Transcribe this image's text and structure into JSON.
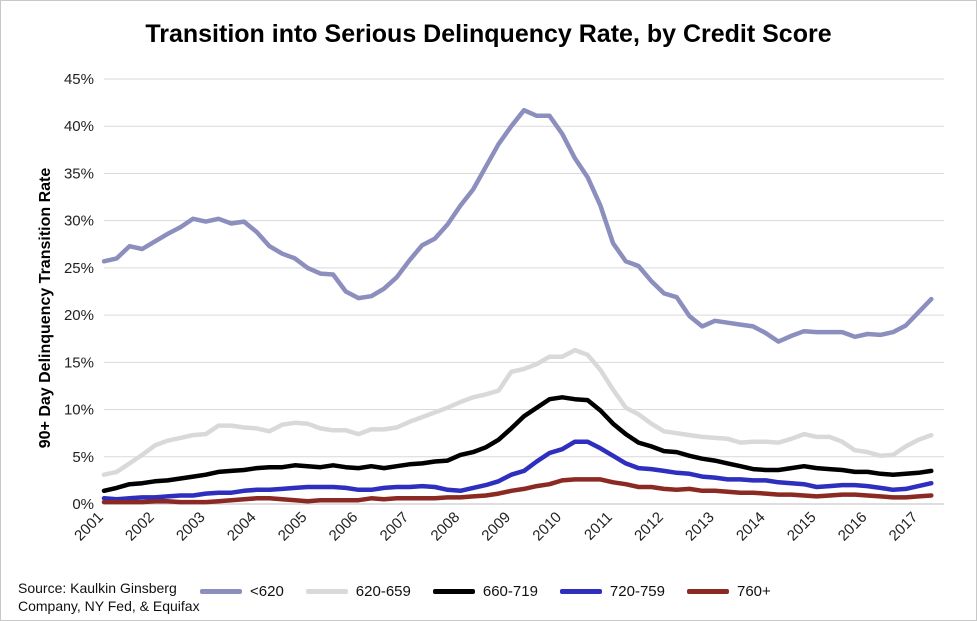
{
  "chart_data": {
    "type": "line",
    "title": "Transition into Serious Delinquency Rate, by Credit Score",
    "ylabel": "90+ Day Delinquency Transition Rate",
    "xlabel": "",
    "ylim": [
      0,
      45
    ],
    "yticks": [
      "0%",
      "5%",
      "10%",
      "15%",
      "20%",
      "25%",
      "30%",
      "35%",
      "40%",
      "45%"
    ],
    "xticks": [
      "2001",
      "2002",
      "2003",
      "2004",
      "2005",
      "2006",
      "2007",
      "2008",
      "2009",
      "2010",
      "2011",
      "2012",
      "2013",
      "2014",
      "2015",
      "2016",
      "2017"
    ],
    "xlim": [
      2001,
      2017.5
    ],
    "grid": true,
    "legend_position": "bottom",
    "series": [
      {
        "name": "<620",
        "color": "#8c8fbe",
        "x": [
          2001.0,
          2001.25,
          2001.5,
          2001.75,
          2002.0,
          2002.25,
          2002.5,
          2002.75,
          2003.0,
          2003.25,
          2003.5,
          2003.75,
          2004.0,
          2004.25,
          2004.5,
          2004.75,
          2005.0,
          2005.25,
          2005.5,
          2005.75,
          2006.0,
          2006.25,
          2006.5,
          2006.75,
          2007.0,
          2007.25,
          2007.5,
          2007.75,
          2008.0,
          2008.25,
          2008.5,
          2008.75,
          2009.0,
          2009.25,
          2009.5,
          2009.75,
          2010.0,
          2010.25,
          2010.5,
          2010.75,
          2011.0,
          2011.25,
          2011.5,
          2011.75,
          2012.0,
          2012.25,
          2012.5,
          2012.75,
          2013.0,
          2013.25,
          2013.5,
          2013.75,
          2014.0,
          2014.25,
          2014.5,
          2014.75,
          2015.0,
          2015.25,
          2015.5,
          2015.75,
          2016.0,
          2016.25,
          2016.5,
          2016.75,
          2017.0,
          2017.25
        ],
        "values": [
          25.7,
          26.0,
          27.3,
          27.0,
          27.8,
          28.6,
          29.3,
          30.2,
          29.9,
          30.2,
          29.7,
          29.9,
          28.8,
          27.3,
          26.5,
          26.0,
          25.0,
          24.4,
          24.3,
          22.5,
          21.8,
          22.0,
          22.8,
          24.0,
          25.8,
          27.4,
          28.1,
          29.6,
          31.6,
          33.3,
          35.7,
          38.1,
          40.0,
          41.7,
          41.1,
          41.1,
          39.2,
          36.6,
          34.6,
          31.6,
          27.6,
          25.7,
          25.2,
          23.6,
          22.3,
          21.9,
          19.9,
          18.8,
          19.4,
          19.2,
          19.0,
          18.8,
          18.1,
          17.2,
          17.8,
          18.3,
          18.2,
          18.2,
          18.2,
          17.7,
          18.0,
          17.9,
          18.2,
          18.9,
          20.3,
          21.7
        ]
      },
      {
        "name": "620-659",
        "color": "#d9d9d9",
        "x": [
          2001.0,
          2001.25,
          2001.5,
          2001.75,
          2002.0,
          2002.25,
          2002.5,
          2002.75,
          2003.0,
          2003.25,
          2003.5,
          2003.75,
          2004.0,
          2004.25,
          2004.5,
          2004.75,
          2005.0,
          2005.25,
          2005.5,
          2005.75,
          2006.0,
          2006.25,
          2006.5,
          2006.75,
          2007.0,
          2007.25,
          2007.5,
          2007.75,
          2008.0,
          2008.25,
          2008.5,
          2008.75,
          2009.0,
          2009.25,
          2009.5,
          2009.75,
          2010.0,
          2010.25,
          2010.5,
          2010.75,
          2011.0,
          2011.25,
          2011.5,
          2011.75,
          2012.0,
          2012.25,
          2012.5,
          2012.75,
          2013.0,
          2013.25,
          2013.5,
          2013.75,
          2014.0,
          2014.25,
          2014.5,
          2014.75,
          2015.0,
          2015.25,
          2015.5,
          2015.75,
          2016.0,
          2016.25,
          2016.5,
          2016.75,
          2017.0,
          2017.25
        ],
        "values": [
          3.1,
          3.4,
          4.3,
          5.2,
          6.2,
          6.7,
          7.0,
          7.3,
          7.4,
          8.3,
          8.3,
          8.1,
          8.0,
          7.7,
          8.4,
          8.6,
          8.5,
          8.0,
          7.8,
          7.8,
          7.4,
          7.9,
          7.9,
          8.1,
          8.7,
          9.2,
          9.7,
          10.2,
          10.8,
          11.3,
          11.6,
          12.0,
          14.0,
          14.3,
          14.8,
          15.6,
          15.6,
          16.3,
          15.8,
          14.2,
          12.1,
          10.2,
          9.5,
          8.5,
          7.7,
          7.5,
          7.3,
          7.1,
          7.0,
          6.9,
          6.5,
          6.6,
          6.6,
          6.5,
          6.9,
          7.4,
          7.1,
          7.1,
          6.6,
          5.7,
          5.5,
          5.1,
          5.2,
          6.1,
          6.8,
          7.3
        ]
      },
      {
        "name": "660-719",
        "color": "#000000",
        "x": [
          2001.0,
          2001.25,
          2001.5,
          2001.75,
          2002.0,
          2002.25,
          2002.5,
          2002.75,
          2003.0,
          2003.25,
          2003.5,
          2003.75,
          2004.0,
          2004.25,
          2004.5,
          2004.75,
          2005.0,
          2005.25,
          2005.5,
          2005.75,
          2006.0,
          2006.25,
          2006.5,
          2006.75,
          2007.0,
          2007.25,
          2007.5,
          2007.75,
          2008.0,
          2008.25,
          2008.5,
          2008.75,
          2009.0,
          2009.25,
          2009.5,
          2009.75,
          2010.0,
          2010.25,
          2010.5,
          2010.75,
          2011.0,
          2011.25,
          2011.5,
          2011.75,
          2012.0,
          2012.25,
          2012.5,
          2012.75,
          2013.0,
          2013.25,
          2013.5,
          2013.75,
          2014.0,
          2014.25,
          2014.5,
          2014.75,
          2015.0,
          2015.25,
          2015.5,
          2015.75,
          2016.0,
          2016.25,
          2016.5,
          2016.75,
          2017.0,
          2017.25
        ],
        "values": [
          1.4,
          1.7,
          2.1,
          2.2,
          2.4,
          2.5,
          2.7,
          2.9,
          3.1,
          3.4,
          3.5,
          3.6,
          3.8,
          3.9,
          3.9,
          4.1,
          4.0,
          3.9,
          4.1,
          3.9,
          3.8,
          4.0,
          3.8,
          4.0,
          4.2,
          4.3,
          4.5,
          4.6,
          5.2,
          5.5,
          6.0,
          6.8,
          8.0,
          9.3,
          10.2,
          11.1,
          11.3,
          11.1,
          11.0,
          9.9,
          8.5,
          7.4,
          6.5,
          6.1,
          5.6,
          5.5,
          5.1,
          4.8,
          4.6,
          4.3,
          4.0,
          3.7,
          3.6,
          3.6,
          3.8,
          4.0,
          3.8,
          3.7,
          3.6,
          3.4,
          3.4,
          3.2,
          3.1,
          3.2,
          3.3,
          3.5
        ]
      },
      {
        "name": "720-759",
        "color": "#2e2ebf",
        "x": [
          2001.0,
          2001.25,
          2001.5,
          2001.75,
          2002.0,
          2002.25,
          2002.5,
          2002.75,
          2003.0,
          2003.25,
          2003.5,
          2003.75,
          2004.0,
          2004.25,
          2004.5,
          2004.75,
          2005.0,
          2005.25,
          2005.5,
          2005.75,
          2006.0,
          2006.25,
          2006.5,
          2006.75,
          2007.0,
          2007.25,
          2007.5,
          2007.75,
          2008.0,
          2008.25,
          2008.5,
          2008.75,
          2009.0,
          2009.25,
          2009.5,
          2009.75,
          2010.0,
          2010.25,
          2010.5,
          2010.75,
          2011.0,
          2011.25,
          2011.5,
          2011.75,
          2012.0,
          2012.25,
          2012.5,
          2012.75,
          2013.0,
          2013.25,
          2013.5,
          2013.75,
          2014.0,
          2014.25,
          2014.5,
          2014.75,
          2015.0,
          2015.25,
          2015.5,
          2015.75,
          2016.0,
          2016.25,
          2016.5,
          2016.75,
          2017.0,
          2017.25
        ],
        "values": [
          0.6,
          0.5,
          0.6,
          0.7,
          0.7,
          0.8,
          0.9,
          0.9,
          1.1,
          1.2,
          1.2,
          1.4,
          1.5,
          1.5,
          1.6,
          1.7,
          1.8,
          1.8,
          1.8,
          1.7,
          1.5,
          1.5,
          1.7,
          1.8,
          1.8,
          1.9,
          1.8,
          1.5,
          1.4,
          1.7,
          2.0,
          2.4,
          3.1,
          3.5,
          4.5,
          5.4,
          5.8,
          6.6,
          6.6,
          5.9,
          5.1,
          4.3,
          3.8,
          3.7,
          3.5,
          3.3,
          3.2,
          2.9,
          2.8,
          2.6,
          2.6,
          2.5,
          2.5,
          2.3,
          2.2,
          2.1,
          1.8,
          1.9,
          2.0,
          2.0,
          1.9,
          1.7,
          1.5,
          1.6,
          1.9,
          2.2
        ]
      },
      {
        "name": "760+",
        "color": "#8b2a23",
        "x": [
          2001.0,
          2001.25,
          2001.5,
          2001.75,
          2002.0,
          2002.25,
          2002.5,
          2002.75,
          2003.0,
          2003.25,
          2003.5,
          2003.75,
          2004.0,
          2004.25,
          2004.5,
          2004.75,
          2005.0,
          2005.25,
          2005.5,
          2005.75,
          2006.0,
          2006.25,
          2006.5,
          2006.75,
          2007.0,
          2007.25,
          2007.5,
          2007.75,
          2008.0,
          2008.25,
          2008.5,
          2008.75,
          2009.0,
          2009.25,
          2009.5,
          2009.75,
          2010.0,
          2010.25,
          2010.5,
          2010.75,
          2011.0,
          2011.25,
          2011.5,
          2011.75,
          2012.0,
          2012.25,
          2012.5,
          2012.75,
          2013.0,
          2013.25,
          2013.5,
          2013.75,
          2014.0,
          2014.25,
          2014.5,
          2014.75,
          2015.0,
          2015.25,
          2015.5,
          2015.75,
          2016.0,
          2016.25,
          2016.5,
          2016.75,
          2017.0,
          2017.25
        ],
        "values": [
          0.2,
          0.2,
          0.2,
          0.2,
          0.3,
          0.3,
          0.2,
          0.2,
          0.2,
          0.3,
          0.4,
          0.5,
          0.6,
          0.6,
          0.5,
          0.4,
          0.3,
          0.4,
          0.4,
          0.4,
          0.4,
          0.6,
          0.5,
          0.6,
          0.6,
          0.6,
          0.6,
          0.7,
          0.7,
          0.8,
          0.9,
          1.1,
          1.4,
          1.6,
          1.9,
          2.1,
          2.5,
          2.6,
          2.6,
          2.6,
          2.3,
          2.1,
          1.8,
          1.8,
          1.6,
          1.5,
          1.6,
          1.4,
          1.4,
          1.3,
          1.2,
          1.2,
          1.1,
          1.0,
          1.0,
          0.9,
          0.8,
          0.9,
          1.0,
          1.0,
          0.9,
          0.8,
          0.7,
          0.7,
          0.8,
          0.9
        ]
      }
    ]
  },
  "source_note": "Source: Kaulkin Ginsberg Company, NY Fed, & Equifax"
}
